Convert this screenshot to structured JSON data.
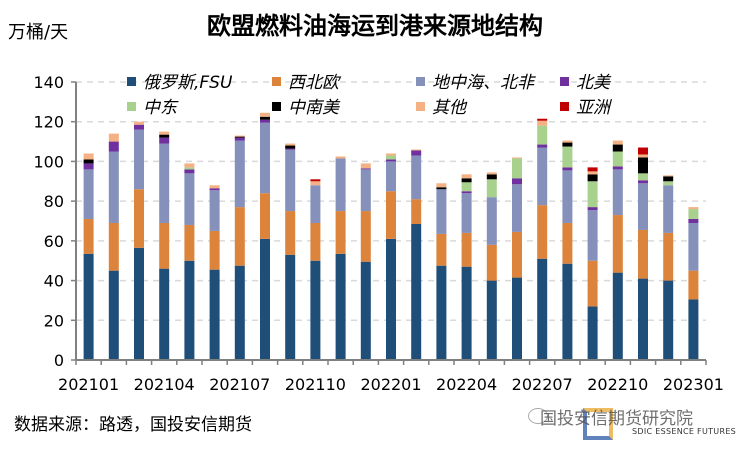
{
  "title": "欧盟燃料油海运到港来源地结构",
  "unit": "万桶/天",
  "source": "数据来源：路透，国投安信期货",
  "watermark": {
    "text": "国投安信期货研究院",
    "sub": "SDIC ESSENCE FUTURES"
  },
  "chart_data": {
    "type": "bar",
    "stacked": true,
    "title": "欧盟燃料油海运到港来源地结构",
    "ylabel": "万桶/天",
    "ylim": [
      0,
      140
    ],
    "yticks": [
      0,
      20,
      40,
      60,
      80,
      100,
      120,
      140
    ],
    "grid": true,
    "legend_position": "top",
    "categories": [
      "202101",
      "202102",
      "202103",
      "202104",
      "202105",
      "202106",
      "202107",
      "202108",
      "202109",
      "202110",
      "202111",
      "202112",
      "202201",
      "202202",
      "202203",
      "202204",
      "202205",
      "202206",
      "202207",
      "202208",
      "202209",
      "202210",
      "202211",
      "202212",
      "202301"
    ],
    "xtick_labels": [
      "202101",
      "202104",
      "202107",
      "202110",
      "202201",
      "202204",
      "202207",
      "202210",
      "202301"
    ],
    "series": [
      {
        "name": "俄罗斯,FSU",
        "color": "#1f4e79",
        "values": [
          53.5,
          45,
          56.5,
          46,
          50,
          45.5,
          47.5,
          61,
          53,
          50,
          53.5,
          49.5,
          61,
          68.5,
          47.5,
          47,
          40,
          41.5,
          51,
          48.5,
          27,
          44,
          41,
          40,
          30.5
        ]
      },
      {
        "name": "西北欧",
        "color": "#dd843c",
        "values": [
          17.5,
          24,
          29.5,
          23,
          18,
          19.5,
          29.5,
          23,
          22,
          19,
          21.5,
          25.5,
          24,
          12.5,
          16,
          17,
          18,
          23,
          27,
          20.5,
          23,
          29,
          24.5,
          24,
          14.5
        ]
      },
      {
        "name": "地中海、北非",
        "color": "#8591bb",
        "values": [
          25,
          36,
          30,
          40,
          26,
          20.5,
          33.5,
          35.5,
          31,
          19,
          26.5,
          21,
          15,
          22,
          22.5,
          20,
          24,
          24,
          29,
          26.5,
          25.5,
          23,
          23.5,
          24,
          24
        ]
      },
      {
        "name": "北美",
        "color": "#7030a0",
        "values": [
          3,
          5,
          2.5,
          3,
          2,
          1,
          1.5,
          1.5,
          0.5,
          0,
          0,
          0.5,
          1,
          2.5,
          0,
          1,
          0,
          3,
          1.5,
          1.5,
          1.5,
          1.5,
          1.5,
          0,
          2
        ]
      },
      {
        "name": "中东",
        "color": "#a9d18e",
        "values": [
          0,
          0,
          0,
          0,
          1,
          0,
          0,
          0,
          0,
          0,
          0,
          0,
          2,
          0,
          0,
          4.5,
          9,
          10,
          9.5,
          10.5,
          13,
          7.5,
          3.5,
          2,
          5
        ]
      },
      {
        "name": "中南美",
        "color": "#000000",
        "values": [
          2,
          0,
          0,
          1.5,
          0,
          0,
          0.5,
          1.5,
          1.5,
          0,
          0,
          0,
          0,
          0,
          1,
          2,
          2.5,
          0,
          0,
          2,
          3.5,
          3.5,
          8,
          2.5,
          0
        ]
      },
      {
        "name": "其他",
        "color": "#f4b183",
        "values": [
          3,
          4,
          1.5,
          1.5,
          2,
          1.5,
          0.5,
          2,
          1,
          2,
          1,
          2.5,
          1,
          0.5,
          2,
          2,
          1,
          0.5,
          2.5,
          1,
          1.5,
          2,
          1.5,
          0.5,
          1
        ]
      },
      {
        "name": "亚洲",
        "color": "#c00000",
        "values": [
          0,
          0,
          0,
          0,
          0,
          0,
          0,
          0,
          0,
          1,
          0,
          0,
          0,
          0,
          0,
          0,
          0,
          0,
          1,
          0,
          2,
          0,
          3.5,
          0,
          0
        ]
      }
    ]
  }
}
